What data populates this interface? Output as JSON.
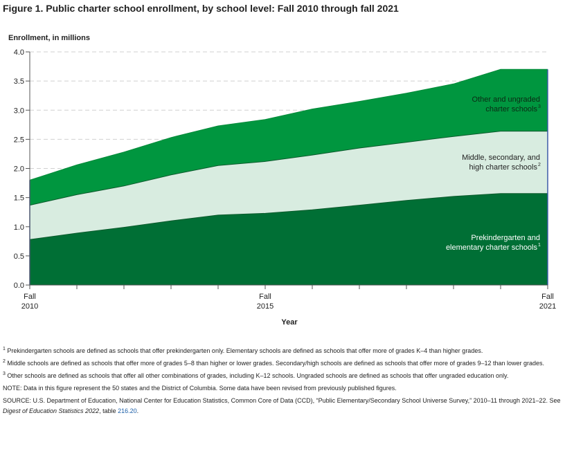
{
  "figure_title": "Figure 1. Public charter school enrollment, by school level: Fall 2010 through fall 2021",
  "chart_data": {
    "type": "area",
    "stacked": true,
    "ylabel": "Enrollment, in millions",
    "xlabel": "Year",
    "ylim": [
      0,
      4.0
    ],
    "y_ticks": [
      "0.0",
      "0.5",
      "1.0",
      "1.5",
      "2.0",
      "2.5",
      "3.0",
      "3.5",
      "4.0"
    ],
    "x": [
      2010,
      2011,
      2012,
      2013,
      2014,
      2015,
      2016,
      2017,
      2018,
      2019,
      2020,
      2021
    ],
    "x_tick_labels": [
      {
        "year": 2010,
        "line1": "Fall",
        "line2": "2010"
      },
      {
        "year": 2015,
        "line1": "Fall",
        "line2": "2015"
      },
      {
        "year": 2021,
        "line1": "Fall",
        "line2": "2021"
      }
    ],
    "grid": "horizontal dashed",
    "series": [
      {
        "name_line1": "Prekindergarten and",
        "name_line2": "elementary charter schools",
        "sup": "1",
        "color": "#006f35",
        "values": [
          0.78,
          0.89,
          0.99,
          1.1,
          1.2,
          1.23,
          1.29,
          1.37,
          1.45,
          1.52,
          1.57,
          1.57
        ]
      },
      {
        "name_line1": "Middle, secondary, and",
        "name_line2": "high charter schools",
        "sup": "2",
        "color": "#d8ece0",
        "values": [
          0.59,
          0.66,
          0.71,
          0.79,
          0.85,
          0.89,
          0.94,
          0.98,
          1.0,
          1.03,
          1.07,
          1.07
        ]
      },
      {
        "name_line1": "Other and ungraded",
        "name_line2": "charter schools",
        "sup": "3",
        "color": "#00963f",
        "values": [
          0.43,
          0.51,
          0.58,
          0.64,
          0.68,
          0.72,
          0.79,
          0.8,
          0.84,
          0.9,
          1.06,
          1.06
        ]
      }
    ],
    "outline_color": "#3d5aa8"
  },
  "notes": {
    "n1_sup": "1",
    "n1": "Prekindergarten schools are defined as schools that offer prekindergarten only. Elementary schools are defined as schools that offer more of grades K–4 than higher grades.",
    "n2_sup": "2",
    "n2": "Middle schools are defined as schools that offer more of grades 5–8 than higher or lower grades. Secondary/high schools are defined as schools that offer more of grades 9–12 than lower grades.",
    "n3_sup": "3",
    "n3": "Other schools are defined as schools that offer all other combinations of grades, including K–12 schools. Ungraded schools are defined as schools that offer ungraded education only.",
    "note": "NOTE: Data in this figure represent the 50 states and the District of Columbia. Some data have been revised from previously published figures.",
    "source_pre": "SOURCE: U.S. Department of Education, National Center for Education Statistics, Common Core of Data (CCD), “Public Elementary/Secondary School Universe Survey,” 2010–11 through 2021–22. See ",
    "source_italic": "Digest of Education Statistics 2022",
    "source_mid": ", table ",
    "source_link": "216.20",
    "source_end": "."
  }
}
